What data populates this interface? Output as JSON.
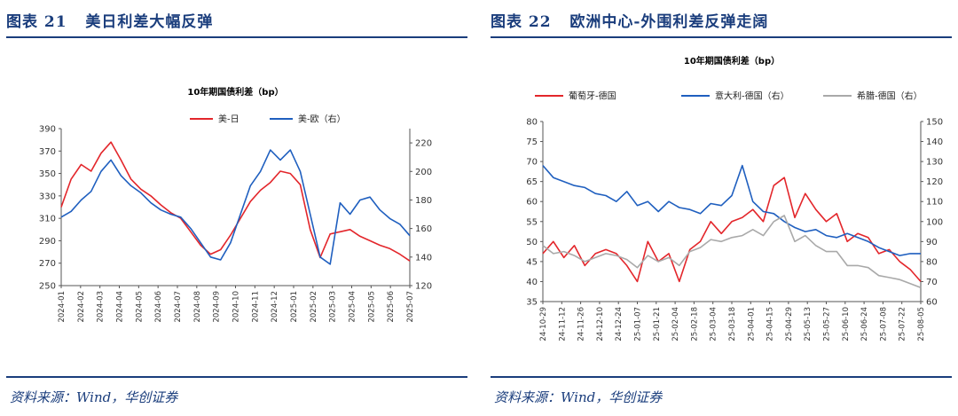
{
  "figures": [
    {
      "label": "图表 21",
      "heading": "美日利差大幅反弹",
      "source": "资料来源：Wind，华创证券",
      "chart_data": {
        "type": "line",
        "title": "10年期国债利差（bp）",
        "x_ticks": [
          "2024-01",
          "2024-02",
          "2024-03",
          "2024-04",
          "2024-05",
          "2024-06",
          "2024-07",
          "2024-08",
          "2024-09",
          "2024-10",
          "2024-11",
          "2024-12",
          "2025-01",
          "2025-02",
          "2025-03",
          "2025-04",
          "2025-05",
          "2025-06",
          "2025-07"
        ],
        "y_left": {
          "min": 250,
          "max": 390,
          "ticks": [
            250,
            270,
            290,
            310,
            330,
            350,
            370,
            390
          ]
        },
        "y_right": {
          "min": 120,
          "max": 230,
          "ticks": [
            120,
            140,
            160,
            180,
            200,
            220
          ]
        },
        "legend_placement": "top-center",
        "series": [
          {
            "name": "美-日",
            "axis": "left",
            "color": "#e3262b",
            "values": [
              320,
              345,
              358,
              352,
              368,
              378,
              362,
              345,
              336,
              330,
              322,
              315,
              310,
              298,
              286,
              278,
              282,
              295,
              310,
              325,
              335,
              342,
              352,
              350,
              340,
              300,
              275,
              296,
              298,
              300,
              294,
              290,
              286,
              283,
              278,
              272
            ]
          },
          {
            "name": "美-欧（右）",
            "axis": "right",
            "color": "#1f5fbf",
            "values": [
              168,
              172,
              180,
              186,
              200,
              208,
              197,
              190,
              185,
              178,
              173,
              170,
              168,
              160,
              150,
              140,
              138,
              150,
              170,
              190,
              200,
              215,
              208,
              215,
              200,
              170,
              140,
              135,
              178,
              170,
              180,
              182,
              173,
              167,
              163,
              155
            ]
          }
        ]
      }
    },
    {
      "label": "图表 22",
      "heading": "欧洲中心-外围利差反弹走阔",
      "source": "资料来源：Wind，华创证券",
      "chart_data": {
        "type": "line",
        "title": "10年期国债利差（bp）",
        "x_ticks": [
          "24-10-29",
          "24-11-12",
          "24-11-26",
          "24-12-10",
          "24-12-24",
          "25-01-07",
          "25-01-21",
          "25-02-04",
          "25-02-18",
          "25-03-04",
          "25-03-18",
          "25-04-01",
          "25-04-15",
          "25-04-29",
          "25-05-13",
          "25-05-27",
          "25-06-10",
          "25-06-24",
          "25-07-08",
          "25-07-22",
          "25-08-05"
        ],
        "y_left": {
          "min": 35,
          "max": 80,
          "ticks": [
            35,
            40,
            45,
            50,
            55,
            60,
            65,
            70,
            75,
            80
          ]
        },
        "y_right": {
          "min": 60,
          "max": 150,
          "ticks": [
            60,
            70,
            80,
            90,
            100,
            110,
            120,
            130,
            140,
            150
          ]
        },
        "legend_placement": "top",
        "series": [
          {
            "name": "葡萄牙-德国",
            "axis": "left",
            "color": "#e3262b",
            "values": [
              47,
              50,
              46,
              49,
              44,
              47,
              48,
              47,
              44,
              40,
              50,
              45,
              47,
              40,
              48,
              50,
              55,
              52,
              55,
              56,
              58,
              55,
              64,
              66,
              56,
              62,
              58,
              55,
              57,
              50,
              52,
              51,
              47,
              48,
              45,
              43,
              40
            ]
          },
          {
            "name": "意大利-德国（右）",
            "axis": "right",
            "color": "#1f5fbf",
            "values": [
              128,
              122,
              120,
              118,
              117,
              114,
              113,
              110,
              115,
              108,
              110,
              105,
              110,
              107,
              106,
              104,
              109,
              108,
              113,
              128,
              110,
              105,
              104,
              100,
              97,
              95,
              96,
              93,
              92,
              94,
              92,
              90,
              87,
              85,
              83,
              84,
              84
            ]
          },
          {
            "name": "希腊-德国（右）",
            "axis": "right",
            "color": "#a9a9a9",
            "values": [
              88,
              84,
              85,
              83,
              80,
              82,
              84,
              83,
              81,
              77,
              83,
              80,
              82,
              78,
              85,
              87,
              91,
              90,
              92,
              93,
              96,
              93,
              100,
              103,
              90,
              93,
              88,
              85,
              85,
              78,
              78,
              77,
              73,
              72,
              71,
              69,
              67
            ]
          }
        ]
      }
    }
  ]
}
